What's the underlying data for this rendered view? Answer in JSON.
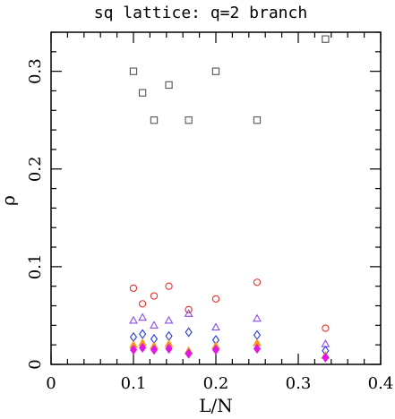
{
  "chart_data": {
    "type": "scatter",
    "title": "sq lattice: q=2 branch",
    "xlabel": "L/N",
    "ylabel": "ρ",
    "xlim": [
      0,
      0.4
    ],
    "ylim": [
      0,
      0.34
    ],
    "x_ticks": [
      "0",
      "0.1",
      "0.2",
      "0.3",
      "0.4"
    ],
    "y_ticks": [
      "0",
      "0.1",
      "0.2",
      "0.3"
    ],
    "grid": false,
    "series": [
      {
        "marker": "square-open",
        "color": "#555555",
        "points": [
          [
            0.1,
            0.3
          ],
          [
            0.111,
            0.278
          ],
          [
            0.125,
            0.25
          ],
          [
            0.143,
            0.286
          ],
          [
            0.167,
            0.25
          ],
          [
            0.2,
            0.3
          ],
          [
            0.25,
            0.25
          ],
          [
            0.333,
            0.333
          ]
        ]
      },
      {
        "marker": "circle-open",
        "color": "#e8322d",
        "points": [
          [
            0.1,
            0.078
          ],
          [
            0.111,
            0.062
          ],
          [
            0.125,
            0.07
          ],
          [
            0.143,
            0.08
          ],
          [
            0.167,
            0.056
          ],
          [
            0.2,
            0.067
          ],
          [
            0.25,
            0.084
          ],
          [
            0.333,
            0.037
          ]
        ]
      },
      {
        "marker": "triangle-open",
        "color": "#8a4de8",
        "points": [
          [
            0.1,
            0.045
          ],
          [
            0.111,
            0.048
          ],
          [
            0.125,
            0.04
          ],
          [
            0.143,
            0.045
          ],
          [
            0.167,
            0.052
          ],
          [
            0.2,
            0.038
          ],
          [
            0.25,
            0.047
          ],
          [
            0.333,
            0.021
          ]
        ]
      },
      {
        "marker": "diamond-open",
        "color": "#2438e0",
        "points": [
          [
            0.1,
            0.028
          ],
          [
            0.111,
            0.031
          ],
          [
            0.125,
            0.026
          ],
          [
            0.143,
            0.029
          ],
          [
            0.167,
            0.033
          ],
          [
            0.2,
            0.025
          ],
          [
            0.25,
            0.03
          ],
          [
            0.333,
            0.014
          ]
        ]
      },
      {
        "marker": "triangle-filled",
        "color": "#f59a1c",
        "points": [
          [
            0.1,
            0.02
          ],
          [
            0.111,
            0.022
          ],
          [
            0.125,
            0.019
          ],
          [
            0.143,
            0.021
          ],
          [
            0.167,
            0.014
          ],
          [
            0.2,
            0.019
          ],
          [
            0.25,
            0.022
          ],
          [
            0.333,
            0.009
          ]
        ]
      },
      {
        "marker": "diamond-filled",
        "color": "#e018e6",
        "points": [
          [
            0.1,
            0.015
          ],
          [
            0.111,
            0.017
          ],
          [
            0.125,
            0.015
          ],
          [
            0.143,
            0.016
          ],
          [
            0.167,
            0.011
          ],
          [
            0.2,
            0.015
          ],
          [
            0.25,
            0.016
          ],
          [
            0.333,
            0.007
          ]
        ]
      }
    ]
  }
}
